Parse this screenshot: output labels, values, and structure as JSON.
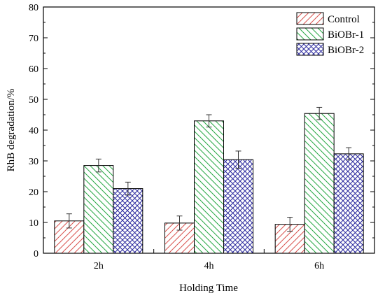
{
  "chart_data": {
    "type": "bar",
    "title": "",
    "xlabel": "Holding Time",
    "ylabel": "RhB degradation/%",
    "categories": [
      "2h",
      "4h",
      "6h"
    ],
    "ylim": [
      0,
      80
    ],
    "yticks": [
      0,
      10,
      20,
      30,
      40,
      50,
      60,
      70,
      80
    ],
    "legend_position": "top-right",
    "grid": false,
    "series": [
      {
        "name": "Control",
        "values": [
          10.5,
          9.8,
          9.4
        ],
        "errors": [
          2.3,
          2.3,
          2.3
        ],
        "color": "#d9534f",
        "pattern": "hatch-forward"
      },
      {
        "name": "BiOBr-1",
        "values": [
          28.5,
          43.0,
          45.4
        ],
        "errors": [
          2.1,
          2.0,
          2.0
        ],
        "color": "#27a844",
        "pattern": "hatch-back"
      },
      {
        "name": "BiOBr-2",
        "values": [
          21.0,
          30.4,
          32.3
        ],
        "errors": [
          2.1,
          2.8,
          2.0
        ],
        "color": "#2c2a9e",
        "pattern": "crosshatch"
      }
    ]
  }
}
